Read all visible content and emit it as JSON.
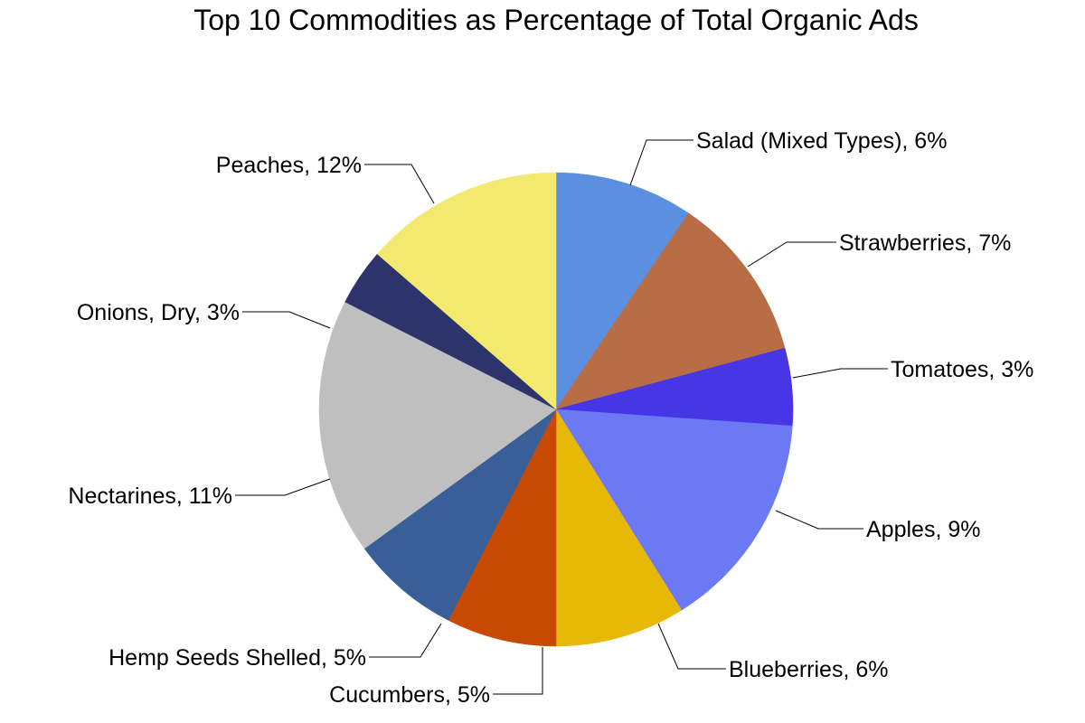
{
  "chart_data": {
    "type": "pie",
    "title": "Top 10 Commodities as Percentage of Total Organic Ads",
    "slices": [
      {
        "label": "Salad (Mixed Types)",
        "value": 6,
        "value_label": "6%",
        "color": "#5b8fe0"
      },
      {
        "label": "Strawberries",
        "value": 7,
        "value_label": "7%",
        "color": "#b86d44"
      },
      {
        "label": "Tomatoes",
        "value": 3,
        "value_label": "3%",
        "color": "#4636e6"
      },
      {
        "label": "Apples",
        "value": 9,
        "value_label": "9%",
        "color": "#6b79f5"
      },
      {
        "label": "Blueberries",
        "value": 6,
        "value_label": "6%",
        "color": "#e8b807"
      },
      {
        "label": "Cucumbers",
        "value": 5,
        "value_label": "5%",
        "color": "#c84a02"
      },
      {
        "label": "Hemp Seeds Shelled",
        "value": 5,
        "value_label": "5%",
        "color": "#3a5f98"
      },
      {
        "label": "Nectarines",
        "value": 11,
        "value_label": "11%",
        "color": "#bfbfbf"
      },
      {
        "label": "Onions, Dry",
        "value": 3,
        "value_label": "3%",
        "color": "#2c336d"
      },
      {
        "label": "Peaches",
        "value": 12,
        "value_label": "12%",
        "color": "#f2e96e"
      }
    ],
    "start_angle_deg": 0,
    "direction": "clockwise",
    "legend": "none"
  }
}
